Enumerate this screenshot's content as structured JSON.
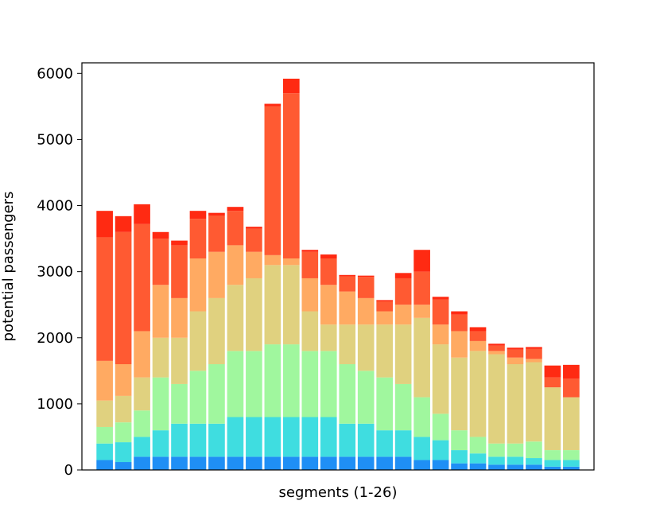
{
  "chart_data": {
    "type": "stacked_bar",
    "x_label": "segments (1-26)",
    "y_label": "potential passengers",
    "ylim": [
      0,
      6160
    ],
    "yticks": [
      0,
      1000,
      2000,
      3000,
      4000,
      5000,
      6000
    ],
    "series": [
      {
        "color": "#1f8ff5",
        "values": [
          150,
          120,
          200,
          200,
          200,
          200,
          200,
          200,
          200,
          200,
          200,
          200,
          200,
          200,
          200,
          200,
          200,
          150,
          150,
          100,
          100,
          80,
          80,
          80,
          50,
          50
        ]
      },
      {
        "color": "#3fdde0",
        "values": [
          250,
          300,
          300,
          400,
          500,
          500,
          500,
          600,
          600,
          600,
          600,
          600,
          600,
          500,
          500,
          400,
          400,
          350,
          300,
          200,
          150,
          120,
          120,
          100,
          100,
          100
        ]
      },
      {
        "color": "#a0f79e",
        "values": [
          250,
          300,
          400,
          800,
          600,
          800,
          900,
          1000,
          1000,
          1100,
          1100,
          1000,
          1000,
          900,
          800,
          800,
          700,
          600,
          400,
          300,
          250,
          200,
          200,
          250,
          150,
          150
        ]
      },
      {
        "color": "#e0d17f",
        "values": [
          400,
          400,
          500,
          600,
          700,
          900,
          1000,
          1000,
          1100,
          1200,
          1200,
          600,
          400,
          600,
          700,
          800,
          900,
          1200,
          1050,
          1100,
          1300,
          1350,
          1200,
          1200,
          950,
          800
        ]
      },
      {
        "color": "#ffaa62",
        "values": [
          600,
          480,
          700,
          800,
          600,
          800,
          700,
          600,
          400,
          150,
          100,
          500,
          600,
          500,
          400,
          200,
          300,
          200,
          300,
          400,
          150,
          50,
          100,
          50,
          0,
          0
        ]
      },
      {
        "color": "#ff5a32",
        "values": [
          1870,
          2000,
          1620,
          700,
          800,
          600,
          550,
          520,
          350,
          2250,
          2500,
          400,
          400,
          230,
          320,
          150,
          400,
          500,
          380,
          250,
          150,
          80,
          120,
          150,
          150,
          280
        ]
      },
      {
        "color": "#ff2a12",
        "values": [
          400,
          240,
          300,
          100,
          70,
          120,
          40,
          60,
          30,
          40,
          220,
          30,
          60,
          20,
          20,
          20,
          80,
          330,
          40,
          50,
          60,
          30,
          30,
          30,
          180,
          210
        ]
      }
    ]
  }
}
